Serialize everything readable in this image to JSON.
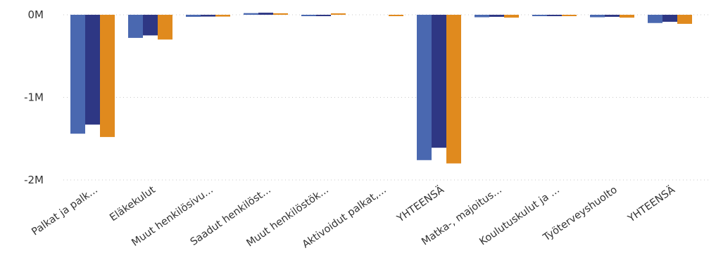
{
  "chart_data": {
    "type": "bar",
    "categories": [
      "Palkat ja palk...",
      "Eläkekulut",
      "Muut henkilösivu...",
      "Saadut henkilöst...",
      "Muut henkilöstök...",
      "Aktivoidut palkat,...",
      "YHTEENSÄ",
      "Matka-, majoitus...",
      "Koulutuskulut ja ...",
      "Työterveyshuolto",
      "YHTEENSÄ"
    ],
    "series": [
      {
        "color": "#4a68b0",
        "values": [
          -1440000,
          -280000,
          -25000,
          20000,
          -10000,
          0,
          -1760000,
          -30000,
          -10000,
          -30000,
          -100000
        ]
      },
      {
        "color": "#2e3784",
        "values": [
          -1330000,
          -250000,
          -22000,
          25000,
          -8000,
          0,
          -1610000,
          -25000,
          -8000,
          -25000,
          -85000
        ]
      },
      {
        "color": "#e08a1e",
        "values": [
          -1480000,
          -300000,
          -22000,
          18000,
          10000,
          -5000,
          -1800000,
          -35000,
          -10000,
          -35000,
          -110000
        ]
      }
    ],
    "yticks": [
      {
        "value": 0,
        "label": "0M"
      },
      {
        "value": -1000000,
        "label": "-1M"
      },
      {
        "value": -2000000,
        "label": "-2M"
      }
    ],
    "ylim": [
      -2000000,
      0
    ],
    "grid": true,
    "title": "",
    "xlabel": "",
    "ylabel": ""
  }
}
